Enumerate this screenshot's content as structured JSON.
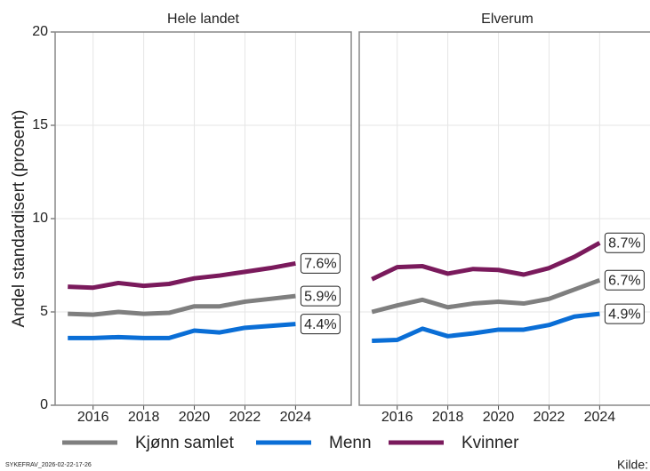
{
  "chart_data": {
    "type": "line",
    "facets": [
      "Hele landet",
      "Elverum"
    ],
    "ylabel": "Andel standardisert (prosent)",
    "x": [
      2015,
      2016,
      2017,
      2018,
      2019,
      2020,
      2021,
      2022,
      2023,
      2024
    ],
    "xlim": [
      2014.5,
      2026.2
    ],
    "xticks": [
      2016,
      2018,
      2020,
      2022,
      2024
    ],
    "ylim": [
      0,
      20
    ],
    "yticks": [
      0,
      5,
      10,
      15,
      20
    ],
    "grid": true,
    "legend": "bottom",
    "series": [
      {
        "name": "Kjønn samlet",
        "color": "#7f7f7f",
        "values": [
          [
            4.9,
            4.85,
            5.0,
            4.9,
            4.95,
            5.3,
            5.3,
            5.55,
            5.7,
            5.85
          ],
          [
            5.0,
            5.35,
            5.65,
            5.25,
            5.45,
            5.55,
            5.45,
            5.7,
            6.2,
            6.7
          ]
        ],
        "value_labels": [
          [
            null,
            null,
            null,
            null,
            null,
            null,
            null,
            null,
            null,
            "5.9%"
          ],
          [
            null,
            null,
            null,
            null,
            null,
            null,
            null,
            null,
            null,
            "6.7%"
          ]
        ]
      },
      {
        "name": "Menn",
        "color": "#0a6ed6",
        "values": [
          [
            3.6,
            3.6,
            3.65,
            3.6,
            3.6,
            4.0,
            3.9,
            4.15,
            4.25,
            4.35
          ],
          [
            3.45,
            3.5,
            4.1,
            3.7,
            3.85,
            4.05,
            4.05,
            4.3,
            4.75,
            4.9
          ]
        ],
        "value_labels": [
          [
            null,
            null,
            null,
            null,
            null,
            null,
            null,
            null,
            null,
            "4.4%"
          ],
          [
            null,
            null,
            null,
            null,
            null,
            null,
            null,
            null,
            null,
            "4.9%"
          ]
        ]
      },
      {
        "name": "Kvinner",
        "color": "#7a1a5c",
        "values": [
          [
            6.35,
            6.3,
            6.55,
            6.4,
            6.5,
            6.8,
            6.95,
            7.15,
            7.35,
            7.6
          ],
          [
            6.75,
            7.4,
            7.45,
            7.05,
            7.3,
            7.25,
            7.0,
            7.35,
            7.95,
            8.7
          ]
        ],
        "value_labels": [
          [
            null,
            null,
            null,
            null,
            null,
            null,
            null,
            null,
            null,
            "7.6%"
          ],
          [
            null,
            null,
            null,
            null,
            null,
            null,
            null,
            null,
            null,
            "8.7%"
          ]
        ]
      }
    ],
    "note": "SYKEFRAV_2026-02-22-17-26",
    "source": "Kilde: SSB"
  }
}
